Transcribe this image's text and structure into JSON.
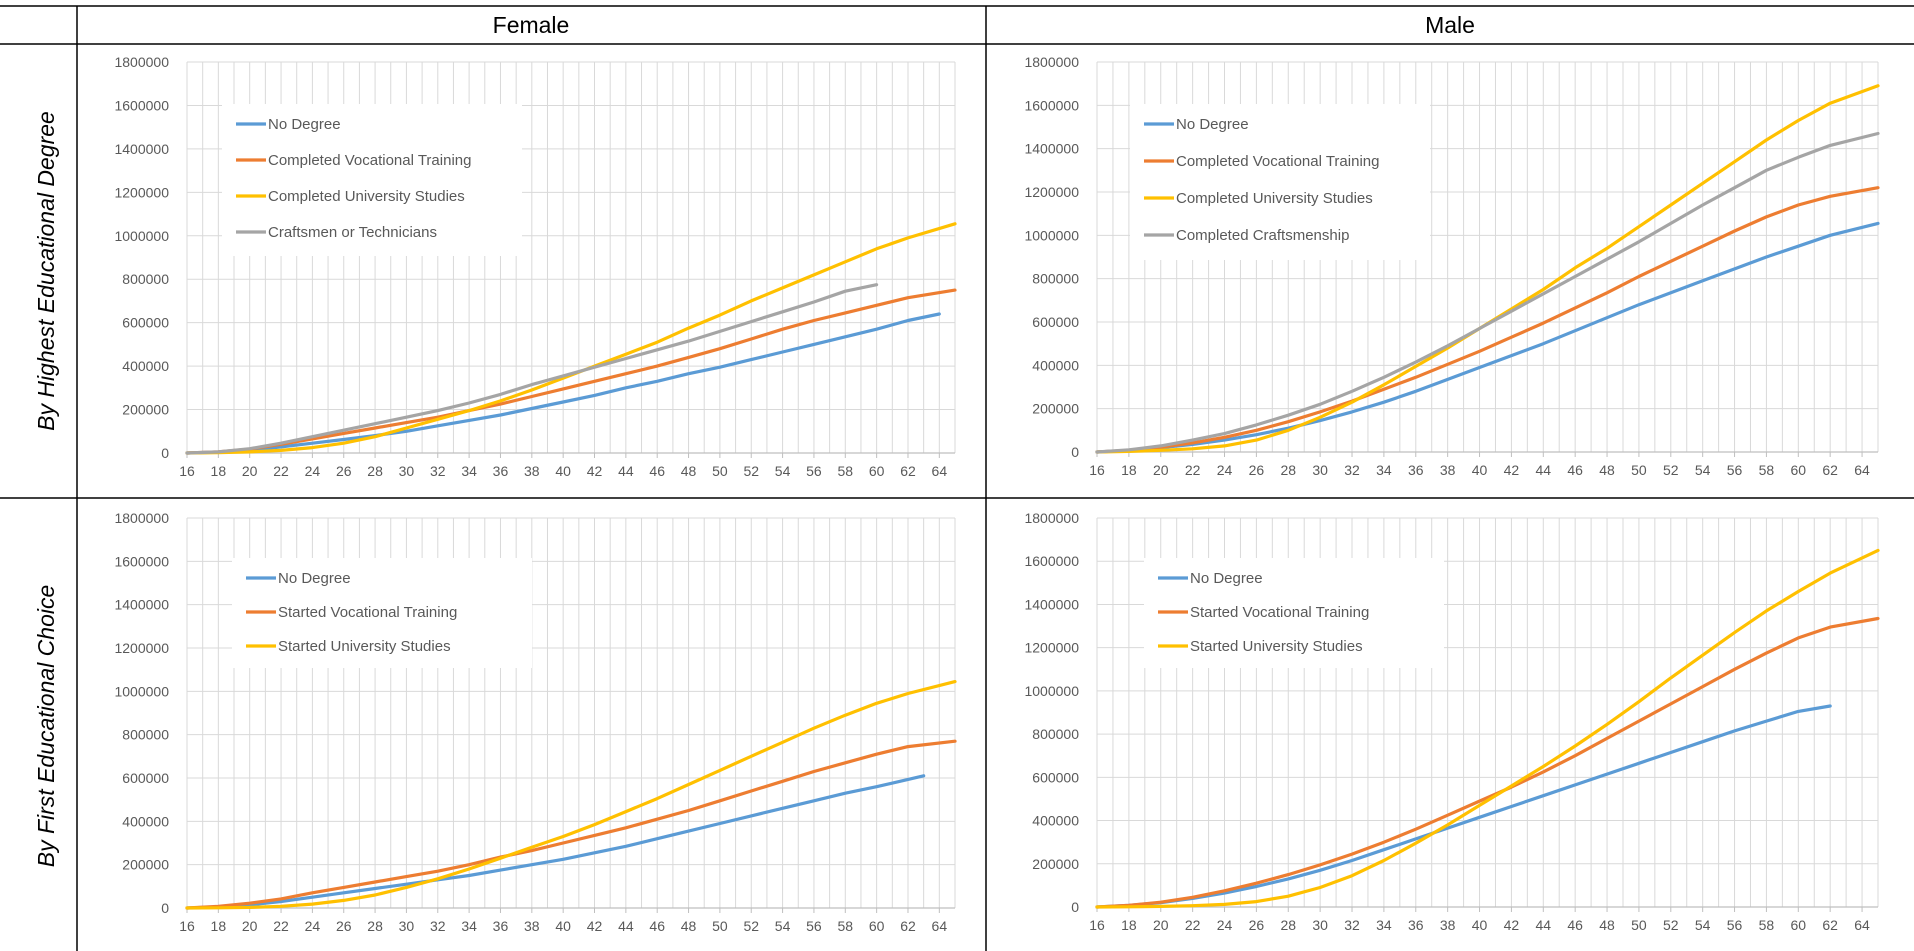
{
  "header": {
    "female": "Female",
    "male": "Male"
  },
  "rows": {
    "top": "By Highest Educational Degree",
    "bottom": "By First Educational Choice"
  },
  "colors": {
    "blue": "#5B9BD5",
    "orange": "#ED7D31",
    "yellow": "#FFC000",
    "gray": "#A5A5A5",
    "grid": "#D9D9D9",
    "axis_text": "#595959",
    "border": "#000000"
  },
  "chart_data": [
    {
      "type": "line",
      "panel": "female-highest-degree",
      "xlim": [
        16,
        65
      ],
      "ylim": [
        0,
        1800000
      ],
      "grid": true,
      "legend": "top-left",
      "xticks": [
        "16",
        "18",
        "20",
        "22",
        "24",
        "26",
        "28",
        "30",
        "32",
        "34",
        "36",
        "38",
        "40",
        "42",
        "44",
        "46",
        "48",
        "50",
        "52",
        "54",
        "56",
        "58",
        "60",
        "62",
        "64"
      ],
      "yticks": [
        "0",
        "200000",
        "400000",
        "600000",
        "800000",
        "1000000",
        "1200000",
        "1400000",
        "1600000",
        "1800000"
      ],
      "series": [
        {
          "name": "No Degree",
          "color": "#5B9BD5",
          "x": [
            16,
            18,
            20,
            22,
            24,
            26,
            28,
            30,
            32,
            34,
            36,
            38,
            40,
            42,
            44,
            46,
            48,
            50,
            52,
            54,
            56,
            58,
            60,
            62,
            64
          ],
          "values": [
            0,
            4000,
            12000,
            28000,
            45000,
            62000,
            80000,
            100000,
            125000,
            150000,
            175000,
            205000,
            235000,
            265000,
            300000,
            330000,
            365000,
            395000,
            430000,
            465000,
            500000,
            535000,
            570000,
            610000,
            640000
          ]
        },
        {
          "name": "Completed Vocational Training",
          "color": "#ED7D31",
          "x": [
            16,
            18,
            20,
            22,
            24,
            26,
            28,
            30,
            32,
            34,
            36,
            38,
            40,
            42,
            44,
            46,
            48,
            50,
            52,
            54,
            56,
            58,
            60,
            62,
            65
          ],
          "values": [
            0,
            5000,
            18000,
            40000,
            65000,
            90000,
            115000,
            140000,
            165000,
            195000,
            225000,
            260000,
            295000,
            330000,
            365000,
            400000,
            440000,
            480000,
            525000,
            570000,
            610000,
            645000,
            680000,
            715000,
            750000
          ]
        },
        {
          "name": "Completed University Studies",
          "color": "#FFC000",
          "x": [
            16,
            18,
            20,
            22,
            24,
            26,
            28,
            30,
            32,
            34,
            36,
            38,
            40,
            42,
            44,
            46,
            48,
            50,
            52,
            54,
            56,
            58,
            60,
            62,
            65
          ],
          "values": [
            0,
            2000,
            5000,
            12000,
            25000,
            45000,
            75000,
            115000,
            155000,
            195000,
            240000,
            290000,
            345000,
            400000,
            455000,
            510000,
            575000,
            635000,
            700000,
            760000,
            820000,
            880000,
            940000,
            990000,
            1055000
          ]
        },
        {
          "name": "Craftsmen or Technicians",
          "color": "#A5A5A5",
          "x": [
            16,
            18,
            20,
            22,
            24,
            26,
            28,
            30,
            32,
            34,
            36,
            38,
            40,
            42,
            44,
            46,
            48,
            50,
            52,
            54,
            56,
            58,
            60
          ],
          "values": [
            0,
            5000,
            20000,
            45000,
            75000,
            105000,
            135000,
            165000,
            195000,
            230000,
            270000,
            315000,
            355000,
            395000,
            435000,
            475000,
            515000,
            560000,
            605000,
            650000,
            695000,
            745000,
            775000
          ]
        }
      ]
    },
    {
      "type": "line",
      "panel": "male-highest-degree",
      "xlim": [
        16,
        65
      ],
      "ylim": [
        0,
        1800000
      ],
      "grid": true,
      "legend": "top-left",
      "xticks": [
        "16",
        "18",
        "20",
        "22",
        "24",
        "26",
        "28",
        "30",
        "32",
        "34",
        "36",
        "38",
        "40",
        "42",
        "44",
        "46",
        "48",
        "50",
        "52",
        "54",
        "56",
        "58",
        "60",
        "62",
        "64"
      ],
      "yticks": [
        "0",
        "200000",
        "400000",
        "600000",
        "800000",
        "1000000",
        "1200000",
        "1400000",
        "1600000",
        "1800000"
      ],
      "series": [
        {
          "name": "No Degree",
          "color": "#5B9BD5",
          "x": [
            16,
            18,
            20,
            22,
            24,
            26,
            28,
            30,
            32,
            34,
            36,
            38,
            40,
            42,
            44,
            46,
            48,
            50,
            52,
            54,
            56,
            58,
            60,
            62,
            65
          ],
          "values": [
            0,
            8000,
            20000,
            35000,
            55000,
            80000,
            110000,
            145000,
            185000,
            230000,
            280000,
            335000,
            390000,
            445000,
            500000,
            560000,
            620000,
            680000,
            735000,
            790000,
            845000,
            900000,
            950000,
            1000000,
            1055000
          ]
        },
        {
          "name": "Completed Vocational Training",
          "color": "#ED7D31",
          "x": [
            16,
            18,
            20,
            22,
            24,
            26,
            28,
            30,
            32,
            34,
            36,
            38,
            40,
            42,
            44,
            46,
            48,
            50,
            52,
            54,
            56,
            58,
            60,
            62,
            65
          ],
          "values": [
            0,
            8000,
            22000,
            42000,
            68000,
            100000,
            140000,
            185000,
            235000,
            290000,
            345000,
            405000,
            465000,
            530000,
            595000,
            665000,
            735000,
            810000,
            880000,
            950000,
            1020000,
            1085000,
            1140000,
            1180000,
            1220000
          ]
        },
        {
          "name": "Completed University Studies",
          "color": "#FFC000",
          "x": [
            16,
            18,
            20,
            22,
            24,
            26,
            28,
            30,
            32,
            34,
            36,
            38,
            40,
            42,
            44,
            46,
            48,
            50,
            52,
            54,
            56,
            58,
            60,
            62,
            65
          ],
          "values": [
            0,
            3000,
            8000,
            15000,
            28000,
            55000,
            100000,
            160000,
            230000,
            310000,
            395000,
            480000,
            570000,
            660000,
            750000,
            850000,
            940000,
            1040000,
            1140000,
            1240000,
            1340000,
            1440000,
            1530000,
            1610000,
            1690000
          ]
        },
        {
          "name": "Completed Craftsmenship",
          "color": "#A5A5A5",
          "x": [
            16,
            18,
            20,
            22,
            24,
            26,
            28,
            30,
            32,
            34,
            36,
            38,
            40,
            42,
            44,
            46,
            48,
            50,
            52,
            54,
            56,
            58,
            60,
            62,
            65
          ],
          "values": [
            0,
            10000,
            28000,
            55000,
            85000,
            125000,
            170000,
            220000,
            280000,
            345000,
            415000,
            490000,
            570000,
            650000,
            730000,
            810000,
            890000,
            970000,
            1055000,
            1140000,
            1220000,
            1300000,
            1360000,
            1415000,
            1470000
          ]
        }
      ]
    },
    {
      "type": "line",
      "panel": "female-first-choice",
      "xlim": [
        16,
        65
      ],
      "ylim": [
        0,
        1800000
      ],
      "grid": true,
      "legend": "top-left",
      "xticks": [
        "16",
        "18",
        "20",
        "22",
        "24",
        "26",
        "28",
        "30",
        "32",
        "34",
        "36",
        "38",
        "40",
        "42",
        "44",
        "46",
        "48",
        "50",
        "52",
        "54",
        "56",
        "58",
        "60",
        "62",
        "64"
      ],
      "yticks": [
        "0",
        "200000",
        "400000",
        "600000",
        "800000",
        "1000000",
        "1200000",
        "1400000",
        "1600000",
        "1800000"
      ],
      "series": [
        {
          "name": "No Degree",
          "color": "#5B9BD5",
          "x": [
            16,
            18,
            20,
            22,
            24,
            26,
            28,
            30,
            32,
            34,
            36,
            38,
            40,
            42,
            44,
            46,
            48,
            50,
            52,
            54,
            56,
            58,
            60,
            63
          ],
          "values": [
            0,
            5000,
            15000,
            30000,
            50000,
            70000,
            90000,
            110000,
            130000,
            150000,
            175000,
            200000,
            225000,
            255000,
            285000,
            320000,
            355000,
            390000,
            425000,
            460000,
            495000,
            530000,
            560000,
            610000
          ]
        },
        {
          "name": "Started Vocational Training",
          "color": "#ED7D31",
          "x": [
            16,
            18,
            20,
            22,
            24,
            26,
            28,
            30,
            32,
            34,
            36,
            38,
            40,
            42,
            44,
            46,
            48,
            50,
            52,
            54,
            56,
            58,
            60,
            62,
            65
          ],
          "values": [
            0,
            8000,
            22000,
            42000,
            70000,
            95000,
            120000,
            145000,
            170000,
            200000,
            235000,
            265000,
            300000,
            335000,
            370000,
            410000,
            450000,
            495000,
            540000,
            585000,
            630000,
            670000,
            710000,
            745000,
            770000
          ]
        },
        {
          "name": "Started University Studies",
          "color": "#FFC000",
          "x": [
            16,
            18,
            20,
            22,
            24,
            26,
            28,
            30,
            32,
            34,
            36,
            38,
            40,
            42,
            44,
            46,
            48,
            50,
            52,
            54,
            56,
            58,
            60,
            62,
            65
          ],
          "values": [
            0,
            1000,
            3000,
            8000,
            18000,
            35000,
            60000,
            95000,
            135000,
            180000,
            230000,
            280000,
            330000,
            385000,
            445000,
            505000,
            570000,
            635000,
            700000,
            765000,
            830000,
            890000,
            945000,
            990000,
            1045000
          ]
        }
      ]
    },
    {
      "type": "line",
      "panel": "male-first-choice",
      "xlim": [
        16,
        65
      ],
      "ylim": [
        0,
        1800000
      ],
      "grid": true,
      "legend": "top-left",
      "xticks": [
        "16",
        "18",
        "20",
        "22",
        "24",
        "26",
        "28",
        "30",
        "32",
        "34",
        "36",
        "38",
        "40",
        "42",
        "44",
        "46",
        "48",
        "50",
        "52",
        "54",
        "56",
        "58",
        "60",
        "62",
        "64"
      ],
      "yticks": [
        "0",
        "200000",
        "400000",
        "600000",
        "800000",
        "1000000",
        "1200000",
        "1400000",
        "1600000",
        "1800000"
      ],
      "series": [
        {
          "name": "No Degree",
          "color": "#5B9BD5",
          "x": [
            16,
            18,
            20,
            22,
            24,
            26,
            28,
            30,
            32,
            34,
            36,
            38,
            40,
            42,
            44,
            46,
            48,
            50,
            52,
            54,
            56,
            58,
            60,
            62
          ],
          "values": [
            0,
            8000,
            20000,
            40000,
            65000,
            95000,
            130000,
            170000,
            215000,
            265000,
            315000,
            365000,
            415000,
            465000,
            515000,
            565000,
            615000,
            665000,
            715000,
            765000,
            815000,
            860000,
            905000,
            930000
          ]
        },
        {
          "name": "Started Vocational Training",
          "color": "#ED7D31",
          "x": [
            16,
            18,
            20,
            22,
            24,
            26,
            28,
            30,
            32,
            34,
            36,
            38,
            40,
            42,
            44,
            46,
            48,
            50,
            52,
            54,
            56,
            58,
            60,
            62,
            65
          ],
          "values": [
            0,
            8000,
            22000,
            45000,
            75000,
            110000,
            150000,
            195000,
            245000,
            300000,
            360000,
            425000,
            490000,
            555000,
            625000,
            700000,
            780000,
            860000,
            940000,
            1020000,
            1100000,
            1175000,
            1245000,
            1295000,
            1335000
          ]
        },
        {
          "name": "Started University Studies",
          "color": "#FFC000",
          "x": [
            16,
            18,
            20,
            22,
            24,
            26,
            28,
            30,
            32,
            34,
            36,
            38,
            40,
            42,
            44,
            46,
            48,
            50,
            52,
            54,
            56,
            58,
            60,
            62,
            65
          ],
          "values": [
            0,
            1000,
            3000,
            6000,
            12000,
            25000,
            50000,
            90000,
            145000,
            215000,
            295000,
            380000,
            470000,
            560000,
            650000,
            745000,
            845000,
            950000,
            1060000,
            1165000,
            1270000,
            1370000,
            1460000,
            1545000,
            1650000
          ]
        }
      ]
    }
  ]
}
